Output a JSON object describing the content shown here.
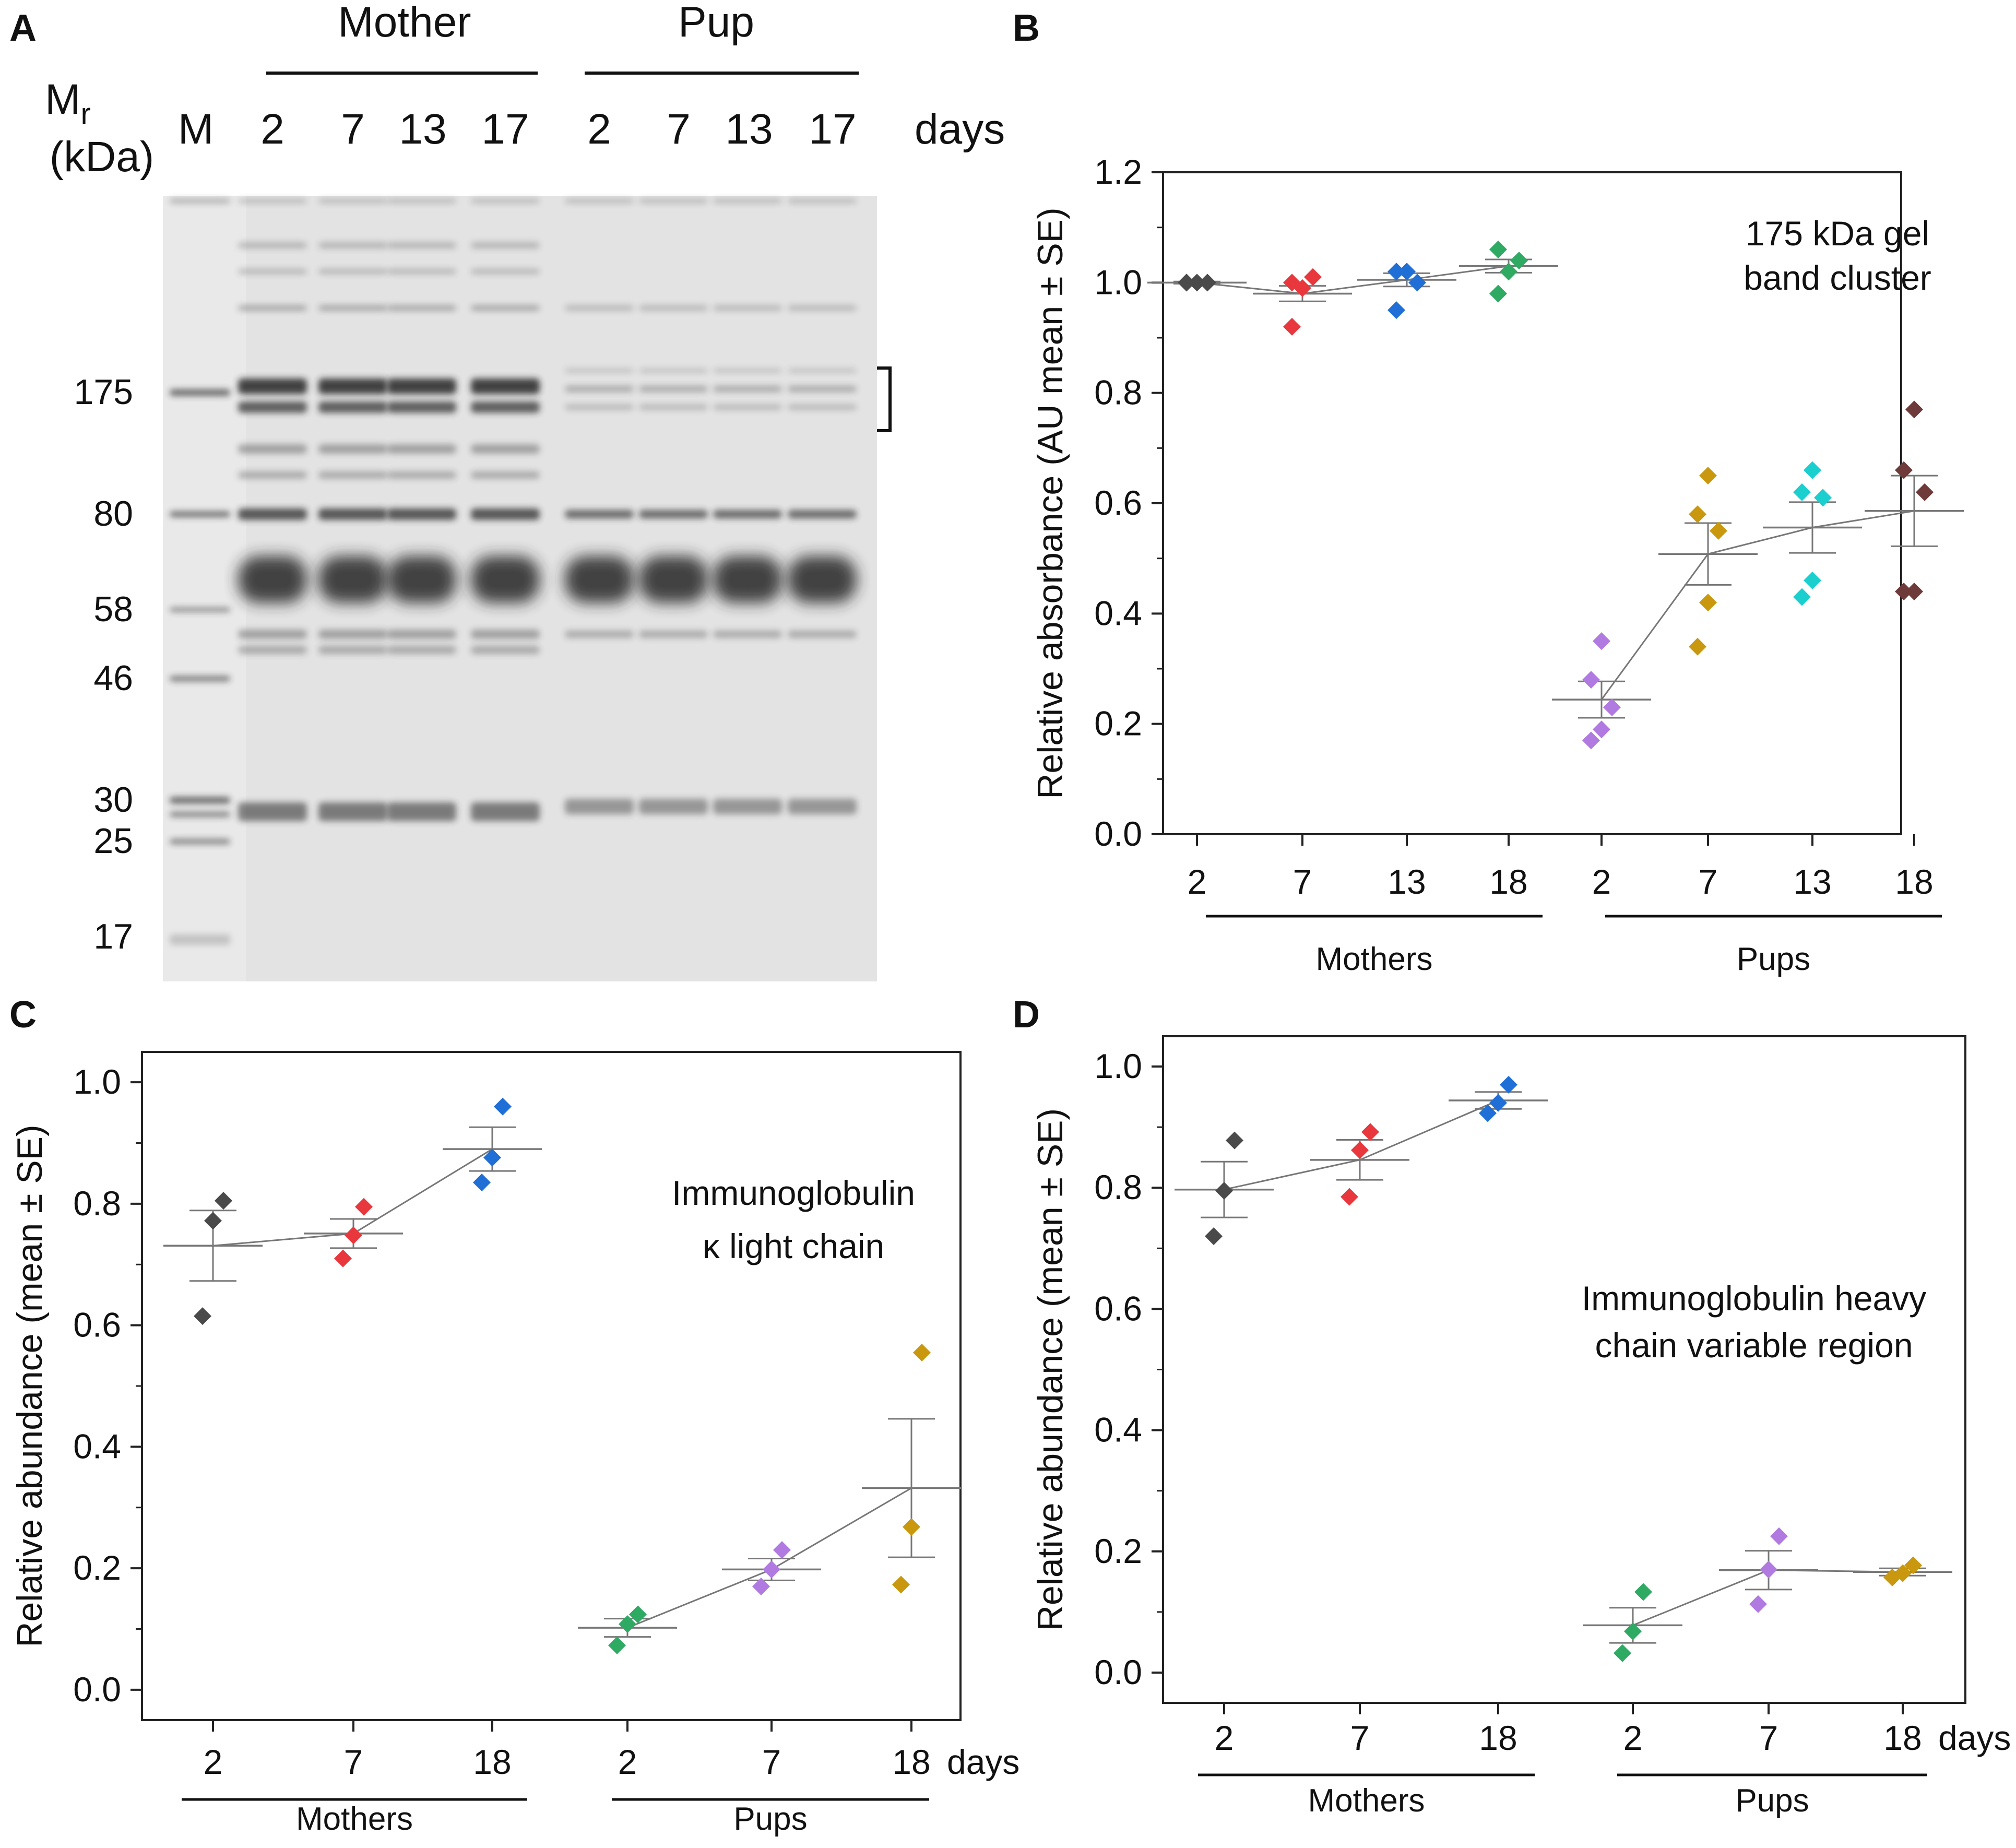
{
  "panel_letters": {
    "a": "A",
    "b": "B",
    "c": "C",
    "d": "D"
  },
  "colors": {
    "mothers_2": "#4a4a4a",
    "mothers_7": "#e8383d",
    "mothers_13": "#1f6fd6",
    "mothers_18": "#2eaa63",
    "pups_2": "#b07ae0",
    "pups_7": "#c9980e",
    "pups_13": "#1ccfcf",
    "pups_18": "#6e3a3a",
    "mean_line": "#777777",
    "axes": "#222222"
  },
  "gel": {
    "group_mother": "Mother",
    "group_pup": "Pup",
    "mr_label_main": "M",
    "mr_label_sub": "r",
    "kda_label": "(kDa)",
    "lane_labels": [
      "M",
      "2",
      "7",
      "13",
      "17",
      "2",
      "7",
      "13",
      "17"
    ],
    "days_label": "days",
    "mw_markers": [
      "175",
      "80",
      "58",
      "46",
      "30",
      "25",
      "17"
    ]
  },
  "chart_data": [
    {
      "panel": "B",
      "type": "scatter",
      "title": "",
      "annotation": [
        "175 kDa gel",
        "band cluster"
      ],
      "ylabel": "Relative absorbance (AU mean ± SE)",
      "ylim": [
        0,
        1.2
      ],
      "yticks": [
        "0.0",
        "0.2",
        "0.4",
        "0.6",
        "0.8",
        "1.0",
        "1.2"
      ],
      "group_labels": [
        "Mothers",
        "Pups"
      ],
      "days_suffix": "",
      "categories": [
        "2",
        "7",
        "13",
        "18",
        "2",
        "7",
        "13",
        "18"
      ],
      "color_keys": [
        "mothers_2",
        "mothers_7",
        "mothers_13",
        "mothers_18",
        "pups_2",
        "pups_7",
        "pups_13",
        "pups_18"
      ],
      "points": [
        [
          1.0,
          1.0,
          1.0,
          1.0
        ],
        [
          0.92,
          0.99,
          1.01,
          1.0
        ],
        [
          0.95,
          1.02,
          1.0,
          1.02
        ],
        [
          0.98,
          1.02,
          1.04,
          1.06
        ],
        [
          0.17,
          0.19,
          0.23,
          0.28,
          0.35
        ],
        [
          0.34,
          0.42,
          0.55,
          0.58,
          0.65
        ],
        [
          0.43,
          0.46,
          0.61,
          0.62,
          0.66
        ],
        [
          0.44,
          0.44,
          0.62,
          0.66,
          0.77
        ]
      ],
      "mean": [
        1.0,
        0.98,
        1.005,
        1.03,
        0.244,
        0.508,
        0.556,
        0.586
      ],
      "se": [
        0.002,
        0.014,
        0.012,
        0.012,
        0.033,
        0.056,
        0.046,
        0.064
      ]
    },
    {
      "panel": "C",
      "type": "scatter",
      "title": "",
      "annotation": [
        "Immunoglobulin",
        "κ light chain"
      ],
      "ylabel": "Relative abundance (mean ± SE)",
      "ylim": [
        -0.05,
        1.05
      ],
      "yticks": [
        "0.0",
        "0.2",
        "0.4",
        "0.6",
        "0.8",
        "1.0"
      ],
      "group_labels": [
        "Mothers",
        "Pups"
      ],
      "days_suffix": "days",
      "categories": [
        "2",
        "7",
        "18",
        "2",
        "7",
        "18"
      ],
      "color_keys": [
        "mothers_2",
        "mothers_7",
        "mothers_13",
        "mothers_18",
        "pups_2",
        "pups_7"
      ],
      "points": [
        [
          0.615,
          0.772,
          0.805
        ],
        [
          0.71,
          0.748,
          0.795
        ],
        [
          0.835,
          0.876,
          0.96
        ],
        [
          0.073,
          0.108,
          0.124
        ],
        [
          0.17,
          0.198,
          0.23
        ],
        [
          0.173,
          0.268,
          0.555
        ]
      ],
      "mean": [
        0.731,
        0.751,
        0.89,
        0.102,
        0.198,
        0.332
      ],
      "se": [
        0.058,
        0.024,
        0.036,
        0.015,
        0.018,
        0.114
      ]
    },
    {
      "panel": "D",
      "type": "scatter",
      "title": "",
      "annotation": [
        "Immunoglobulin heavy",
        "chain variable region"
      ],
      "ylabel": "Relative abundance (mean ± SE)",
      "ylim": [
        -0.05,
        1.05
      ],
      "yticks": [
        "0.0",
        "0.2",
        "0.4",
        "0.6",
        "0.8",
        "1.0"
      ],
      "group_labels": [
        "Mothers",
        "Pups"
      ],
      "days_suffix": "days",
      "categories": [
        "2",
        "7",
        "18",
        "2",
        "7",
        "18"
      ],
      "color_keys": [
        "mothers_2",
        "mothers_7",
        "mothers_13",
        "mothers_18",
        "pups_2",
        "pups_7"
      ],
      "points": [
        [
          0.72,
          0.795,
          0.878
        ],
        [
          0.785,
          0.862,
          0.892
        ],
        [
          0.923,
          0.94,
          0.97
        ],
        [
          0.032,
          0.068,
          0.133
        ],
        [
          0.113,
          0.17,
          0.225
        ],
        [
          0.157,
          0.164,
          0.177
        ]
      ],
      "mean": [
        0.797,
        0.846,
        0.944,
        0.078,
        0.169,
        0.166
      ],
      "se": [
        0.046,
        0.033,
        0.014,
        0.029,
        0.032,
        0.006
      ]
    }
  ]
}
